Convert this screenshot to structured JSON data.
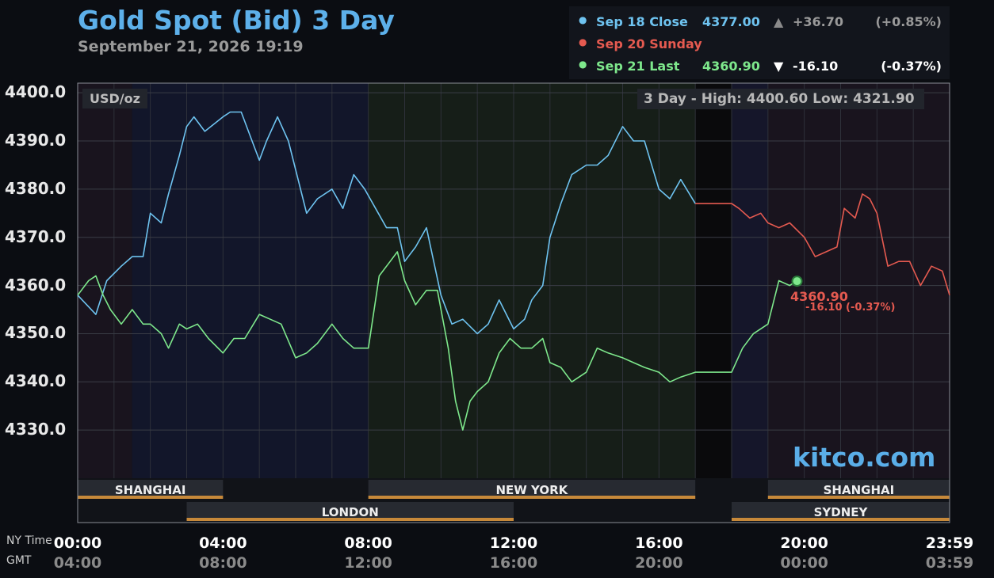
{
  "header": {
    "title": "Gold Spot (Bid) 3 Day",
    "datetime": "September 21, 2026 19:19"
  },
  "legend": [
    {
      "dot": "●",
      "label": "Sep 18 Close",
      "value": "4377.00",
      "arrow": "▲",
      "change": "+36.70",
      "percent": "(+0.85%)",
      "color": "#6ec3f0",
      "arrow_color": "#8a8a8a",
      "change_color": "#9a9a9a"
    },
    {
      "dot": "●",
      "label": "Sep 20 Sunday",
      "value": "",
      "arrow": "",
      "change": "",
      "percent": "",
      "color": "#e55a50",
      "arrow_color": "#e55a50",
      "change_color": "#e55a50"
    },
    {
      "dot": "●",
      "label": "Sep 21 Last",
      "value": "4360.90",
      "arrow": "▼",
      "change": "-16.10",
      "percent": "(-0.37%)",
      "color": "#7ee88c",
      "arrow_color": "#ffffff",
      "change_color": "#ffffff"
    }
  ],
  "panel": {
    "unit": "USD/oz",
    "high_low": "3 Day - High: 4400.60  Low: 4321.90",
    "watermark": "kitco.com",
    "last_value": "4360.90",
    "last_change": "-16.10 (-0.37%)"
  },
  "axis": {
    "ny_time_label": "NY Time",
    "gmt_label": "GMT",
    "ny_ticks": [
      "00:00",
      "04:00",
      "08:00",
      "12:00",
      "16:00",
      "20:00",
      "23:59"
    ],
    "gmt_ticks": [
      "04:00",
      "08:00",
      "12:00",
      "16:00",
      "20:00",
      "00:00",
      "03:59"
    ]
  },
  "sessions": [
    {
      "name": "SHANGHAI",
      "start": 0,
      "end": 4,
      "row": 0
    },
    {
      "name": "LONDON",
      "start": 3,
      "end": 12,
      "row": 1
    },
    {
      "name": "NEW YORK",
      "start": 8,
      "end": 17,
      "row": 0
    },
    {
      "name": "SHANGHAI",
      "start": 19,
      "end": 24,
      "row": 0
    },
    {
      "name": "SYDNEY",
      "start": 18,
      "end": 24,
      "row": 1
    }
  ],
  "colors": {
    "sep18": "#6ec3f0",
    "sep20": "#e55a50",
    "sep21": "#7ee88c",
    "session_bar": "#c7893a",
    "grid": "#3a3d46"
  },
  "chart_data": {
    "type": "line",
    "title": "Gold Spot (Bid) 3 Day",
    "xlabel": "NY Time",
    "ylabel": "USD/oz",
    "x_unit": "hours (NY time)",
    "xlim": [
      0,
      24
    ],
    "ylim": [
      4320,
      4402
    ],
    "yticks": [
      4330.0,
      4340.0,
      4350.0,
      4360.0,
      4370.0,
      4380.0,
      4390.0,
      4400.0
    ],
    "grid": true,
    "legend_position": "top-right",
    "series": [
      {
        "name": "Sep 18 Close",
        "color": "#6ec3f0",
        "points": [
          [
            0,
            4358
          ],
          [
            0.5,
            4354
          ],
          [
            0.8,
            4361
          ],
          [
            1.2,
            4364
          ],
          [
            1.5,
            4366
          ],
          [
            1.8,
            4366
          ],
          [
            2.0,
            4375
          ],
          [
            2.3,
            4373
          ],
          [
            2.5,
            4379
          ],
          [
            2.8,
            4387
          ],
          [
            3.0,
            4393
          ],
          [
            3.2,
            4395
          ],
          [
            3.5,
            4392
          ],
          [
            4.0,
            4395
          ],
          [
            4.2,
            4396
          ],
          [
            4.5,
            4396
          ],
          [
            4.8,
            4390
          ],
          [
            5.0,
            4386
          ],
          [
            5.2,
            4390
          ],
          [
            5.5,
            4395
          ],
          [
            5.8,
            4390
          ],
          [
            6.0,
            4384
          ],
          [
            6.3,
            4375
          ],
          [
            6.6,
            4378
          ],
          [
            7.0,
            4380
          ],
          [
            7.3,
            4376
          ],
          [
            7.6,
            4383
          ],
          [
            7.9,
            4380
          ],
          [
            8.2,
            4376
          ],
          [
            8.5,
            4372
          ],
          [
            8.8,
            4372
          ],
          [
            9.0,
            4365
          ],
          [
            9.3,
            4368
          ],
          [
            9.6,
            4372
          ],
          [
            10.0,
            4358
          ],
          [
            10.3,
            4352
          ],
          [
            10.6,
            4353
          ],
          [
            11.0,
            4350
          ],
          [
            11.3,
            4352
          ],
          [
            11.6,
            4357
          ],
          [
            12.0,
            4351
          ],
          [
            12.3,
            4353
          ],
          [
            12.5,
            4357
          ],
          [
            12.8,
            4360
          ],
          [
            13.0,
            4370
          ],
          [
            13.3,
            4377
          ],
          [
            13.6,
            4383
          ],
          [
            14.0,
            4385
          ],
          [
            14.3,
            4385
          ],
          [
            14.6,
            4387
          ],
          [
            15.0,
            4393
          ],
          [
            15.3,
            4390
          ],
          [
            15.6,
            4390
          ],
          [
            16.0,
            4380
          ],
          [
            16.3,
            4378
          ],
          [
            16.6,
            4382
          ],
          [
            17.0,
            4377
          ]
        ]
      },
      {
        "name": "Sep 20 Sunday",
        "color": "#e55a50",
        "points": [
          [
            17.0,
            4377
          ],
          [
            18.0,
            4377
          ],
          [
            18.2,
            4376
          ],
          [
            18.5,
            4374
          ],
          [
            18.8,
            4375
          ],
          [
            19.0,
            4373
          ],
          [
            19.3,
            4372
          ],
          [
            19.6,
            4373
          ],
          [
            20.0,
            4370
          ],
          [
            20.3,
            4366
          ],
          [
            20.6,
            4367
          ],
          [
            20.9,
            4368
          ],
          [
            21.1,
            4376
          ],
          [
            21.4,
            4374
          ],
          [
            21.6,
            4379
          ],
          [
            21.8,
            4378
          ],
          [
            22.0,
            4375
          ],
          [
            22.3,
            4364
          ],
          [
            22.6,
            4365
          ],
          [
            22.9,
            4365
          ],
          [
            23.2,
            4360
          ],
          [
            23.5,
            4364
          ],
          [
            23.8,
            4363
          ],
          [
            24.0,
            4358
          ]
        ]
      },
      {
        "name": "Sep 21 Last",
        "color": "#7ee88c",
        "points": [
          [
            0,
            4358
          ],
          [
            0.3,
            4361
          ],
          [
            0.5,
            4362
          ],
          [
            0.7,
            4358
          ],
          [
            0.9,
            4355
          ],
          [
            1.2,
            4352
          ],
          [
            1.5,
            4355
          ],
          [
            1.8,
            4352
          ],
          [
            2.0,
            4352
          ],
          [
            2.3,
            4350
          ],
          [
            2.5,
            4347
          ],
          [
            2.8,
            4352
          ],
          [
            3.0,
            4351
          ],
          [
            3.3,
            4352
          ],
          [
            3.6,
            4349
          ],
          [
            4.0,
            4346
          ],
          [
            4.3,
            4349
          ],
          [
            4.6,
            4349
          ],
          [
            5.0,
            4354
          ],
          [
            5.3,
            4353
          ],
          [
            5.6,
            4352
          ],
          [
            6.0,
            4345
          ],
          [
            6.3,
            4346
          ],
          [
            6.6,
            4348
          ],
          [
            7.0,
            4352
          ],
          [
            7.3,
            4349
          ],
          [
            7.6,
            4347
          ],
          [
            8.0,
            4347
          ],
          [
            8.3,
            4362
          ],
          [
            8.6,
            4365
          ],
          [
            8.8,
            4367
          ],
          [
            9.0,
            4361
          ],
          [
            9.3,
            4356
          ],
          [
            9.6,
            4359
          ],
          [
            9.9,
            4359
          ],
          [
            10.2,
            4347
          ],
          [
            10.4,
            4336
          ],
          [
            10.6,
            4330
          ],
          [
            10.8,
            4336
          ],
          [
            11.0,
            4338
          ],
          [
            11.3,
            4340
          ],
          [
            11.6,
            4346
          ],
          [
            11.9,
            4349
          ],
          [
            12.2,
            4347
          ],
          [
            12.5,
            4347
          ],
          [
            12.8,
            4349
          ],
          [
            13.0,
            4344
          ],
          [
            13.3,
            4343
          ],
          [
            13.6,
            4340
          ],
          [
            14.0,
            4342
          ],
          [
            14.3,
            4347
          ],
          [
            14.6,
            4346
          ],
          [
            15.0,
            4345
          ],
          [
            15.3,
            4344
          ],
          [
            15.6,
            4343
          ],
          [
            16.0,
            4342
          ],
          [
            16.3,
            4340
          ],
          [
            16.6,
            4341
          ],
          [
            17.0,
            4342
          ],
          [
            18.0,
            4342
          ],
          [
            18.3,
            4347
          ],
          [
            18.6,
            4350
          ],
          [
            19.0,
            4352
          ],
          [
            19.3,
            4361
          ],
          [
            19.6,
            4360
          ],
          [
            19.8,
            4361
          ]
        ]
      }
    ],
    "annotations": [
      {
        "x": 19.8,
        "y": 4360.9,
        "text": "4360.90",
        "subtext": "-16.10 (-0.37%)"
      }
    ]
  }
}
